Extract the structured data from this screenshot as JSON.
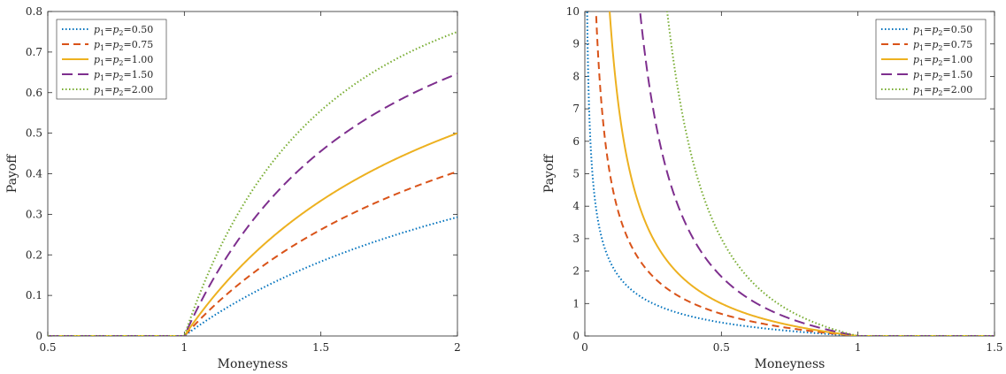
{
  "chart_data": [
    {
      "type": "line",
      "id": "call",
      "xlabel": "Moneyness",
      "ylabel": "Payoff",
      "xlim": [
        0.5,
        2
      ],
      "ylim": [
        0,
        0.8
      ],
      "xticks": [
        0.5,
        1,
        1.5,
        2
      ],
      "xtick_labels": [
        "0.5",
        "1",
        "1.5",
        "2"
      ],
      "yticks": [
        0,
        0.1,
        0.2,
        0.3,
        0.4,
        0.5,
        0.6,
        0.7,
        0.8
      ],
      "ytick_labels": [
        "0",
        "0.1",
        "0.2",
        "0.3",
        "0.4",
        "0.5",
        "0.6",
        "0.7",
        "0.8"
      ],
      "legend_position": "top-left",
      "x": [
        0.5,
        1.0,
        1.1,
        1.2,
        1.3,
        1.4,
        1.5,
        1.6,
        1.7,
        1.8,
        1.9,
        2.0
      ],
      "series": [
        {
          "name": "p1=p2=0.50",
          "p": 0.5,
          "color": "#0072BD",
          "dash": "dot",
          "values": [
            0,
            0,
            0.047,
            0.087,
            0.123,
            0.155,
            0.184,
            0.211,
            0.233,
            0.255,
            0.275,
            0.293
          ]
        },
        {
          "name": "p1=p2=0.75",
          "p": 0.75,
          "color": "#D95319",
          "dash": "dash",
          "values": [
            0,
            0,
            0.069,
            0.128,
            0.179,
            0.223,
            0.262,
            0.297,
            0.328,
            0.356,
            0.382,
            0.405
          ]
        },
        {
          "name": "p1=p2=1.00",
          "p": 1.0,
          "color": "#EDB120",
          "dash": "solid",
          "values": [
            0,
            0,
            0.091,
            0.167,
            0.231,
            0.286,
            0.333,
            0.375,
            0.412,
            0.444,
            0.474,
            0.5
          ]
        },
        {
          "name": "p1=p2=1.50",
          "p": 1.5,
          "color": "#7E2F8E",
          "dash": "longdash",
          "values": [
            0,
            0,
            0.133,
            0.239,
            0.325,
            0.396,
            0.456,
            0.506,
            0.549,
            0.586,
            0.618,
            0.646
          ]
        },
        {
          "name": "p1=p2=2.00",
          "p": 2.0,
          "color": "#77AC30",
          "dash": "dot",
          "values": [
            0,
            0,
            0.174,
            0.306,
            0.408,
            0.49,
            0.556,
            0.609,
            0.654,
            0.691,
            0.723,
            0.75
          ]
        }
      ]
    },
    {
      "type": "line",
      "id": "put",
      "xlabel": "Moneyness",
      "ylabel": "Payoff",
      "xlim": [
        0,
        1.5
      ],
      "ylim": [
        0,
        10
      ],
      "xticks": [
        0,
        0.5,
        1,
        1.5
      ],
      "xtick_labels": [
        "0",
        "0.5",
        "1",
        "1.5"
      ],
      "yticks": [
        0,
        1,
        2,
        3,
        4,
        5,
        6,
        7,
        8,
        9,
        10
      ],
      "ytick_labels": [
        "0",
        "1",
        "2",
        "3",
        "4",
        "5",
        "6",
        "7",
        "8",
        "9",
        "10"
      ],
      "legend_position": "top-right",
      "x": [
        0.01,
        0.05,
        0.1,
        0.2,
        0.3,
        0.4,
        0.5,
        0.6,
        0.7,
        0.8,
        0.9,
        1.0,
        1.5
      ],
      "series": [
        {
          "name": "p1=p2=0.50",
          "p": 0.5,
          "color": "#0072BD",
          "dash": "dot",
          "values": [
            9.0,
            3.47,
            2.16,
            1.24,
            0.83,
            0.58,
            0.41,
            0.29,
            0.2,
            0.12,
            0.05,
            0,
            0
          ]
        },
        {
          "name": "p1=p2=0.75",
          "p": 0.75,
          "color": "#D95319",
          "dash": "dash",
          "values": [
            null,
            7.33,
            3.98,
            2.07,
            1.37,
            0.96,
            0.68,
            0.48,
            0.32,
            0.19,
            0.09,
            0,
            0
          ]
        },
        {
          "name": "p1=p2=1.00",
          "p": 1.0,
          "color": "#EDB120",
          "dash": "solid",
          "values": [
            null,
            null,
            9.0,
            4.0,
            2.33,
            1.5,
            1.0,
            0.67,
            0.43,
            0.25,
            0.11,
            0,
            0
          ]
        },
        {
          "name": "p1=p2=1.50",
          "p": 1.5,
          "color": "#7E2F8E",
          "dash": "longdash",
          "values": [
            null,
            null,
            null,
            10.0,
            5.42,
            3.29,
            2.06,
            1.27,
            0.74,
            0.4,
            0.16,
            0,
            0
          ]
        },
        {
          "name": "p1=p2=2.00",
          "p": 2.0,
          "color": "#77AC30",
          "dash": "dot",
          "values": [
            null,
            null,
            null,
            null,
            9.01,
            5.23,
            3.0,
            1.68,
            0.89,
            0.41,
            0.14,
            0,
            0
          ]
        }
      ]
    }
  ]
}
